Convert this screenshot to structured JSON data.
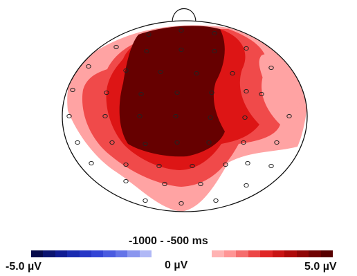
{
  "time_window": "-1000 - -500 ms",
  "scale": {
    "min_label": "-5.0 µV",
    "zero_label": "0 µV",
    "max_label": "5.0 µV",
    "negative_colors": [
      "#060a4a",
      "#0b1470",
      "#101c93",
      "#1a2bb0",
      "#2636c6",
      "#3344d5",
      "#4a5be0",
      "#6474e8",
      "#8a96ef",
      "#b0b8f6"
    ],
    "positive_colors": [
      "#ffb3b3",
      "#ff9595",
      "#f56d6d",
      "#ec4646",
      "#e02525",
      "#c91414",
      "#ae0a0a",
      "#8f0505",
      "#700202",
      "#570000"
    ]
  },
  "contour_colors": {
    "outer": "#ffa3a3",
    "mid": "#f04a4a",
    "inner": "#dd1515",
    "peak": "#660000"
  }
}
